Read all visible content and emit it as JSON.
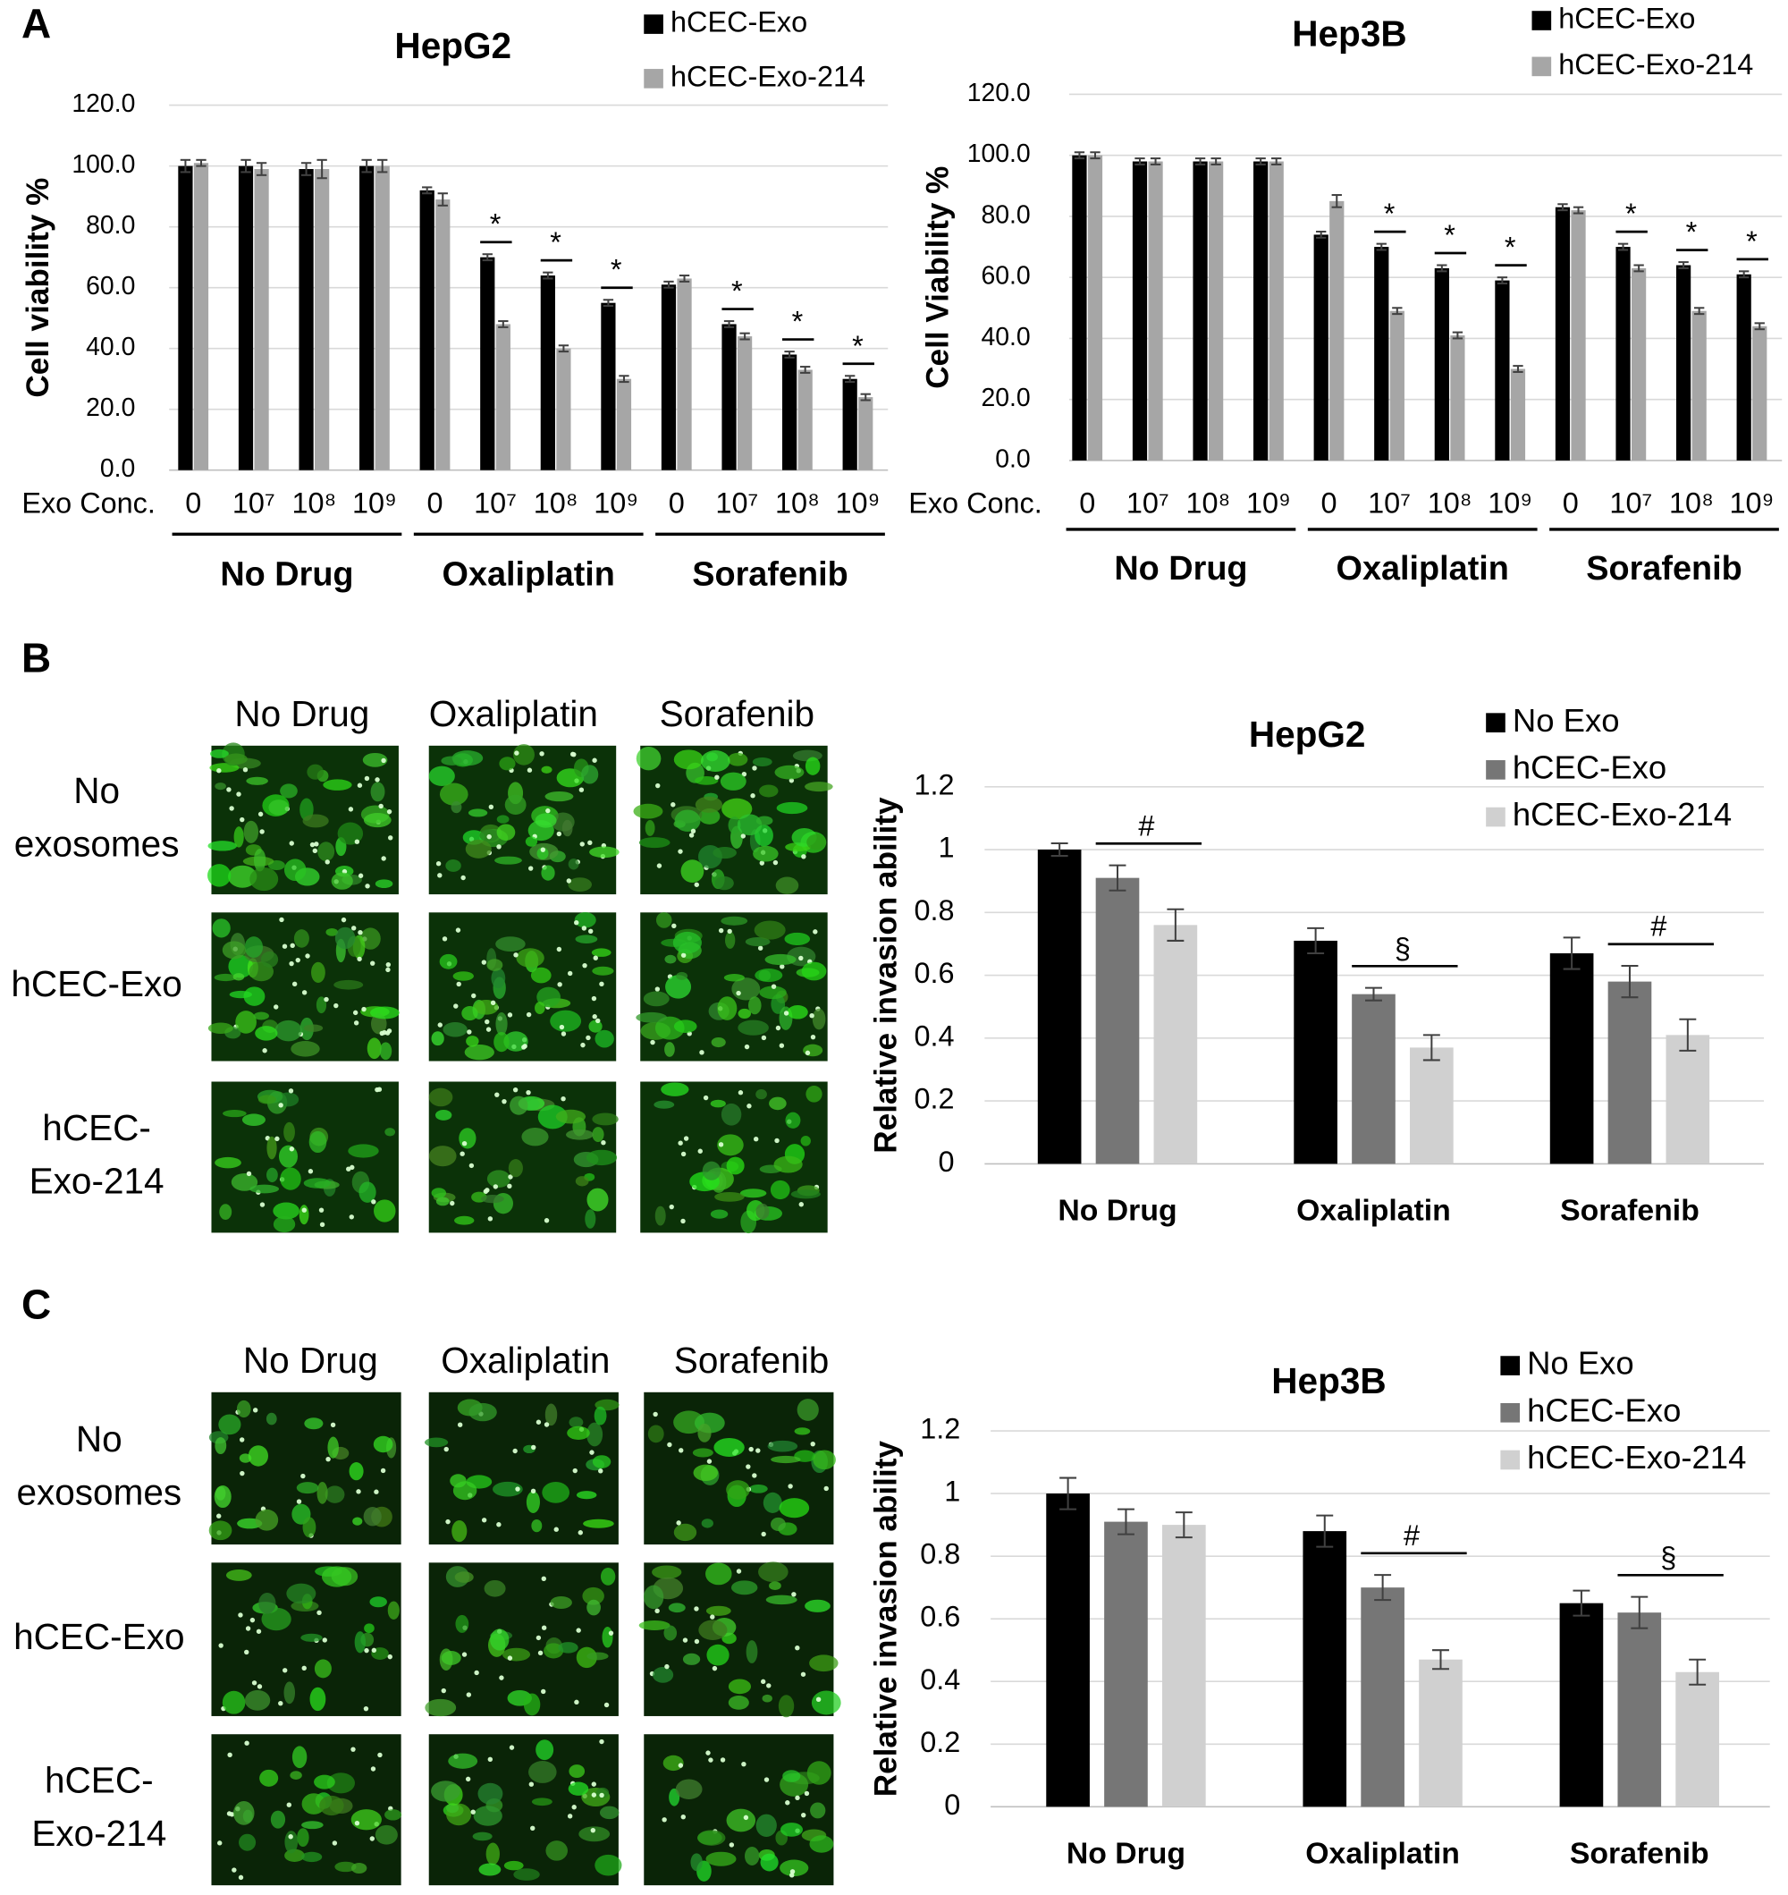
{
  "chart_data": [
    {
      "type": "bar",
      "title": "HepG2",
      "ylabel": "Cell viability %",
      "xlabel": "Exo Conc.",
      "categories": [
        "0",
        "10⁷",
        "10⁸",
        "10⁹",
        "0",
        "10⁷",
        "10⁸",
        "10⁹",
        "0",
        "10⁷",
        "10⁸",
        "10⁹"
      ],
      "groups": [
        "No Drug",
        "Oxaliplatin",
        "Sorafenib"
      ],
      "series": [
        {
          "name": "hCEC-Exo",
          "color": "#000000",
          "values": [
            100,
            100,
            99,
            100,
            92,
            70,
            64,
            55,
            61,
            48,
            38,
            30
          ],
          "errors": [
            2,
            2,
            2,
            2,
            1,
            1,
            1,
            1,
            1,
            1,
            1,
            1
          ]
        },
        {
          "name": "hCEC-Exo-214",
          "color": "#a6a6a6",
          "values": [
            101,
            99,
            99,
            100,
            89,
            48,
            40,
            30,
            63,
            44,
            33,
            24
          ],
          "errors": [
            1,
            2,
            3,
            2,
            2,
            1,
            1,
            1,
            1,
            1,
            1,
            1
          ]
        }
      ],
      "significance": [
        null,
        null,
        null,
        null,
        null,
        "*",
        "*",
        "*",
        null,
        "*",
        "*",
        "*"
      ],
      "ylim": [
        0,
        120
      ],
      "yticks": [
        {
          "value": 0,
          "label": "0.0"
        },
        {
          "value": 20,
          "label": "20.0"
        },
        {
          "value": 40,
          "label": "40.0"
        },
        {
          "value": 60,
          "label": "60.0"
        },
        {
          "value": 80,
          "label": "80.0"
        },
        {
          "value": 100,
          "label": "100.0"
        },
        {
          "value": 120,
          "label": "120.0"
        }
      ],
      "grid": true
    },
    {
      "type": "bar",
      "title": "Hep3B",
      "ylabel": "Cell Viability %",
      "xlabel": "Exo Conc.",
      "categories": [
        "0",
        "10⁷",
        "10⁸",
        "10⁹",
        "0",
        "10⁷",
        "10⁸",
        "10⁹",
        "0",
        "10⁷",
        "10⁸",
        "10⁹"
      ],
      "groups": [
        "No Drug",
        "Oxaliplatin",
        "Sorafenib"
      ],
      "series": [
        {
          "name": "hCEC-Exo",
          "color": "#000000",
          "values": [
            100,
            98,
            98,
            98,
            74,
            70,
            63,
            59,
            83,
            70,
            64,
            61
          ],
          "errors": [
            1,
            1,
            1,
            1,
            1,
            1,
            1,
            1,
            1,
            1,
            1,
            1
          ]
        },
        {
          "name": "hCEC-Exo-214",
          "color": "#a6a6a6",
          "values": [
            100,
            98,
            98,
            98,
            85,
            49,
            41,
            30,
            82,
            63,
            49,
            44
          ],
          "errors": [
            1,
            1,
            1,
            1,
            2,
            1,
            1,
            1,
            1,
            1,
            1,
            1
          ]
        }
      ],
      "significance": [
        null,
        null,
        null,
        null,
        null,
        "*",
        "*",
        "*",
        null,
        "*",
        "*",
        "*"
      ],
      "ylim": [
        0,
        120
      ],
      "yticks": [
        {
          "value": 0,
          "label": "0.0"
        },
        {
          "value": 20,
          "label": "20.0"
        },
        {
          "value": 40,
          "label": "40.0"
        },
        {
          "value": 60,
          "label": "60.0"
        },
        {
          "value": 80,
          "label": "80.0"
        },
        {
          "value": 100,
          "label": "100.0"
        },
        {
          "value": 120,
          "label": "120.0"
        }
      ],
      "grid": true
    },
    {
      "type": "bar",
      "title": "HepG2",
      "ylabel": "Relative invasion ability",
      "categories": [
        "No Drug",
        "Oxaliplatin",
        "Sorafenib"
      ],
      "series": [
        {
          "name": "No Exo",
          "color": "#000000",
          "values": [
            1,
            0.71,
            0.67
          ],
          "errors": [
            0.02,
            0.04,
            0.05
          ]
        },
        {
          "name": "hCEC-Exo",
          "color": "#767676",
          "values": [
            0.91,
            0.54,
            0.58
          ],
          "errors": [
            0.04,
            0.02,
            0.05
          ]
        },
        {
          "name": "hCEC-Exo-214",
          "color": "#d0d0d0",
          "values": [
            0.76,
            0.37,
            0.41
          ],
          "errors": [
            0.05,
            0.04,
            0.05
          ]
        }
      ],
      "significance": [
        "#",
        "§",
        "#"
      ],
      "ylim": [
        0,
        1.2
      ],
      "yticks": [
        0,
        0.2,
        0.4,
        0.6,
        0.8,
        1,
        1.2
      ],
      "grid": true
    },
    {
      "type": "bar",
      "title": "Hep3B",
      "ylabel": "Relative invasion ability",
      "categories": [
        "No Drug",
        "Oxaliplatin",
        "Sorafenib"
      ],
      "series": [
        {
          "name": "No Exo",
          "color": "#000000",
          "values": [
            1,
            0.88,
            0.65
          ],
          "errors": [
            0.05,
            0.05,
            0.04
          ]
        },
        {
          "name": "hCEC-Exo",
          "color": "#767676",
          "values": [
            0.91,
            0.7,
            0.62
          ],
          "errors": [
            0.04,
            0.04,
            0.05
          ]
        },
        {
          "name": "hCEC-Exo-214",
          "color": "#d0d0d0",
          "values": [
            0.9,
            0.47,
            0.43
          ],
          "errors": [
            0.04,
            0.03,
            0.04
          ]
        }
      ],
      "significance": [
        null,
        "#",
        "§"
      ],
      "ylim": [
        0,
        1.2
      ],
      "yticks": [
        0,
        0.2,
        0.4,
        0.6,
        0.8,
        1,
        1.2
      ],
      "grid": true
    }
  ],
  "panel_labels": [
    "A",
    "B",
    "C"
  ],
  "image_grids": [
    {
      "columns": [
        "No Drug",
        "Oxaliplatin",
        "Sorafenib"
      ],
      "rows": [
        [
          "No",
          "exosomes"
        ],
        [
          "hCEC-Exo"
        ],
        [
          "hCEC-",
          "Exo-214"
        ]
      ]
    },
    {
      "columns": [
        "No Drug",
        "Oxaliplatin",
        "Sorafenib"
      ],
      "rows": [
        [
          "No",
          "exosomes"
        ],
        [
          "hCEC-Exo"
        ],
        [
          "hCEC-",
          "Exo-214"
        ]
      ]
    }
  ]
}
